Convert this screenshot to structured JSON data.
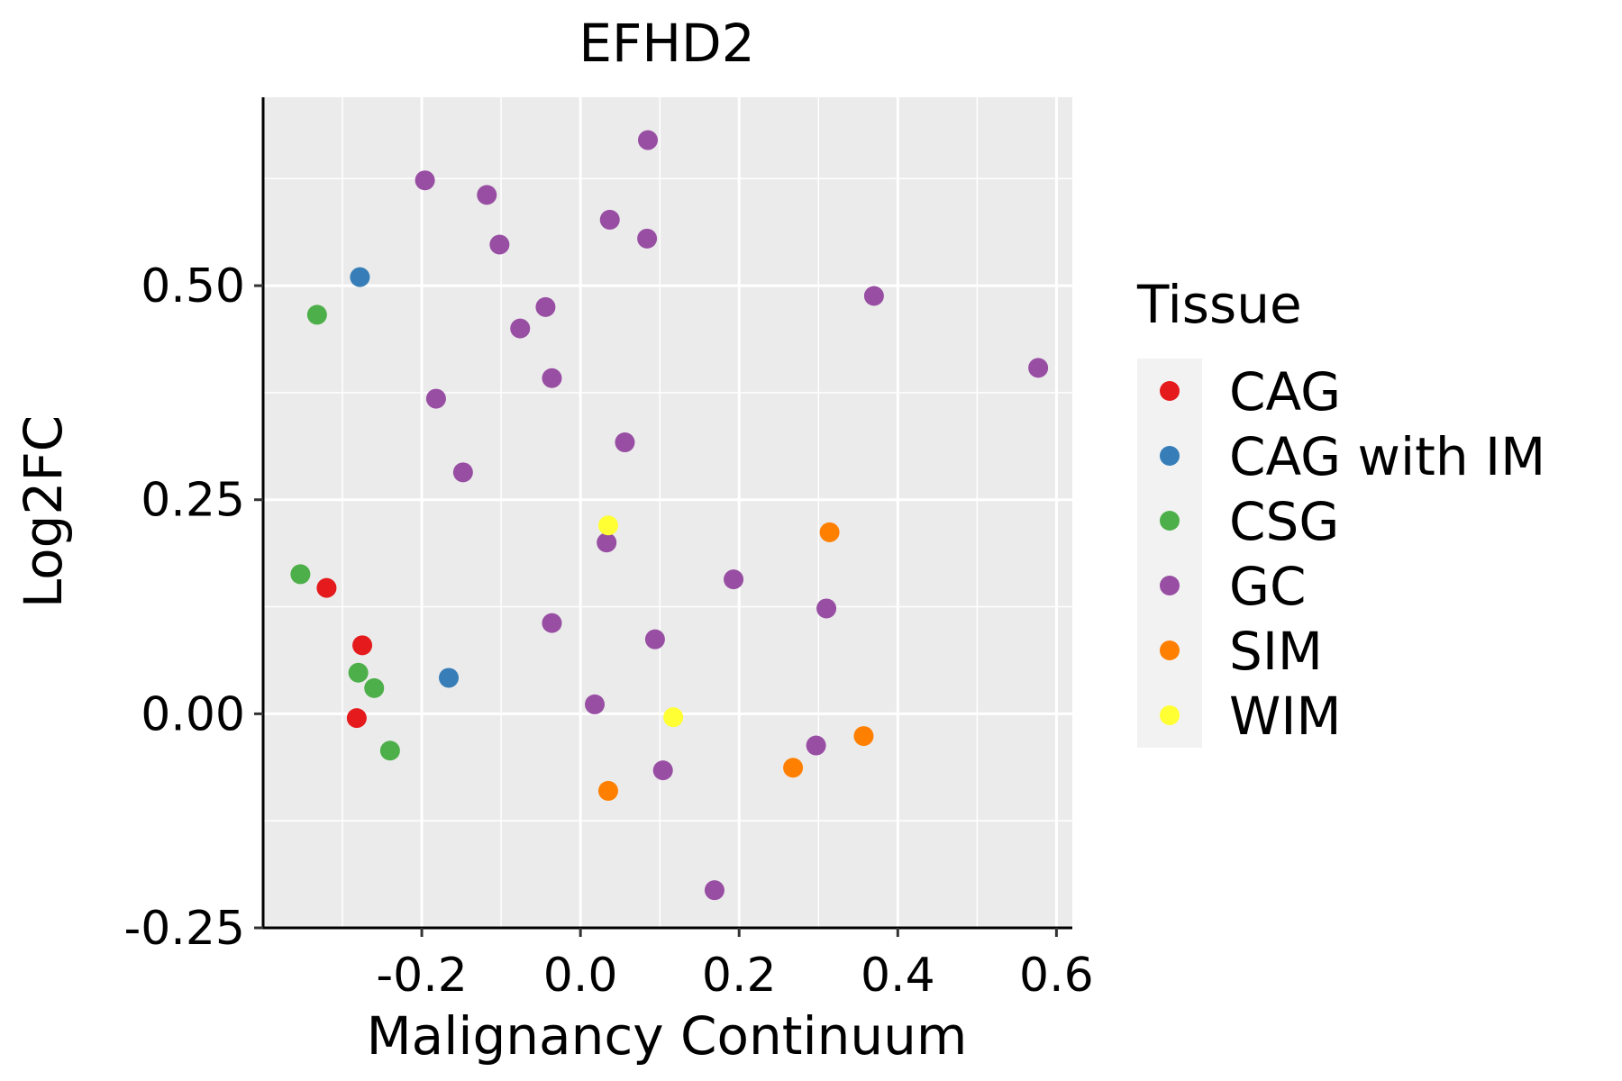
{
  "chart_data": {
    "type": "scatter",
    "title": "EFHD2",
    "xlabel": "Malignancy Continuum",
    "ylabel": "Log2FC",
    "xlim": [
      -0.4,
      0.62
    ],
    "ylim": [
      -0.25,
      0.72
    ],
    "x_ticks": [
      -0.2,
      0.0,
      0.2,
      0.4,
      0.6
    ],
    "x_tick_labels": [
      "-0.2",
      "0.0",
      "0.2",
      "0.4",
      "0.6"
    ],
    "y_ticks": [
      -0.25,
      0.0,
      0.25,
      0.5
    ],
    "y_tick_labels": [
      "-0.25",
      "0.00",
      "0.25",
      "0.50"
    ],
    "grid": true,
    "legend": {
      "title": "Tissue",
      "position": "right",
      "entries": [
        {
          "name": "CAG",
          "color": "#E41A1C"
        },
        {
          "name": "CAG with IM",
          "color": "#377EB8"
        },
        {
          "name": "CSG",
          "color": "#4DAF4A"
        },
        {
          "name": "GC",
          "color": "#984EA3"
        },
        {
          "name": "SIM",
          "color": "#FF7F00"
        },
        {
          "name": "WIM",
          "color": "#FFFF33"
        }
      ]
    },
    "series": [
      {
        "name": "CAG",
        "color": "#E41A1C",
        "points": [
          [
            -0.32,
            0.147
          ],
          [
            -0.275,
            0.08
          ],
          [
            -0.282,
            -0.005
          ]
        ]
      },
      {
        "name": "CAG with IM",
        "color": "#377EB8",
        "points": [
          [
            -0.278,
            0.51
          ],
          [
            -0.166,
            0.042
          ]
        ]
      },
      {
        "name": "CSG",
        "color": "#4DAF4A",
        "points": [
          [
            -0.332,
            0.466
          ],
          [
            -0.353,
            0.163
          ],
          [
            -0.28,
            0.048
          ],
          [
            -0.26,
            0.03
          ],
          [
            -0.24,
            -0.043
          ]
        ]
      },
      {
        "name": "GC",
        "color": "#984EA3",
        "points": [
          [
            0.085,
            0.67
          ],
          [
            -0.196,
            0.623
          ],
          [
            -0.118,
            0.606
          ],
          [
            0.037,
            0.577
          ],
          [
            0.084,
            0.555
          ],
          [
            -0.102,
            0.548
          ],
          [
            0.37,
            0.488
          ],
          [
            -0.044,
            0.475
          ],
          [
            -0.076,
            0.45
          ],
          [
            0.577,
            0.404
          ],
          [
            -0.036,
            0.392
          ],
          [
            -0.182,
            0.368
          ],
          [
            0.056,
            0.317
          ],
          [
            -0.148,
            0.282
          ],
          [
            0.033,
            0.2
          ],
          [
            0.193,
            0.157
          ],
          [
            0.31,
            0.123
          ],
          [
            -0.036,
            0.106
          ],
          [
            0.094,
            0.087
          ],
          [
            0.018,
            0.011
          ],
          [
            0.297,
            -0.037
          ],
          [
            0.104,
            -0.066
          ],
          [
            0.169,
            -0.206
          ]
        ]
      },
      {
        "name": "SIM",
        "color": "#FF7F00",
        "points": [
          [
            0.314,
            0.212
          ],
          [
            0.357,
            -0.026
          ],
          [
            0.268,
            -0.063
          ],
          [
            0.035,
            -0.09
          ]
        ]
      },
      {
        "name": "WIM",
        "color": "#FFFF33",
        "points": [
          [
            0.035,
            0.22
          ],
          [
            0.117,
            -0.004
          ]
        ]
      }
    ]
  }
}
